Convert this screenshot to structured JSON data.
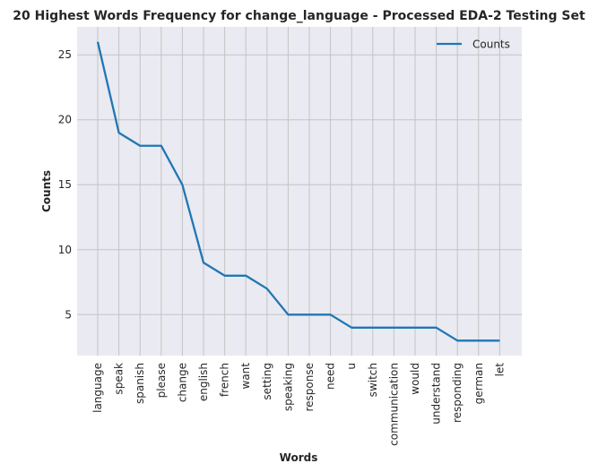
{
  "chart_data": {
    "type": "line",
    "title": "20 Highest Words Frequency for change_language - Processed EDA-2 Testing Set",
    "xlabel": "Words",
    "ylabel": "Counts",
    "categories": [
      "language",
      "speak",
      "spanish",
      "please",
      "change",
      "english",
      "french",
      "want",
      "setting",
      "speaking",
      "response",
      "need",
      "u",
      "switch",
      "communication",
      "would",
      "understand",
      "responding",
      "german",
      "let"
    ],
    "series": [
      {
        "name": "Counts",
        "color": "#1f77b4",
        "values": [
          26,
          19,
          18,
          18,
          15,
          9,
          8,
          8,
          7,
          5,
          5,
          5,
          4,
          4,
          4,
          4,
          4,
          3,
          3,
          3
        ]
      }
    ],
    "yticks": [
      5,
      10,
      15,
      20,
      25
    ],
    "ylim": [
      1.85,
      27.15
    ],
    "grid": true,
    "legend_position": "top-right",
    "background": "#eaeaf2"
  }
}
